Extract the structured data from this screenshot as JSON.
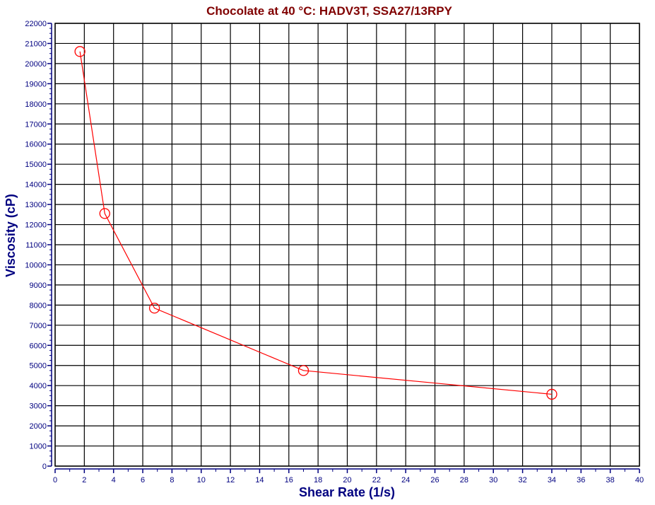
{
  "chart_data": {
    "type": "line",
    "title": "Chocolate at 40 °C:  HADV3T, SSA27/13RPY",
    "xlabel": "Shear Rate (1/s)",
    "ylabel": "Viscosity (cP)",
    "xlim": [
      0,
      40
    ],
    "ylim": [
      0,
      22000
    ],
    "x_major_step": 2,
    "y_major_step": 1000,
    "grid": true,
    "marker": "open-circle",
    "colors": {
      "series": "#ff0000",
      "axis": "#000080",
      "title": "#800000",
      "grid": "#000000"
    },
    "series": [
      {
        "x": [
          1.7,
          3.4,
          6.8,
          17,
          34
        ],
        "y": [
          20600,
          12550,
          7850,
          4750,
          3570
        ]
      }
    ]
  }
}
